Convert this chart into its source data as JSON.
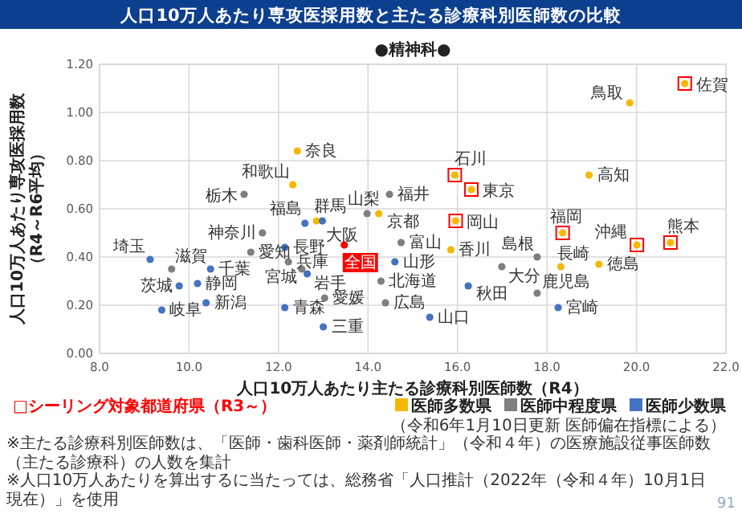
{
  "chart_data": {
    "type": "scatter",
    "title": "人口10万人あたり専攻医採用数と主たる診療科別医師数の比較",
    "subtitle": "●精神科●",
    "xlabel": "人口10万人あたり主たる診療科別医師数（R4）",
    "ylabel": "人口10万人あたり専攻医採用数（R4～R6平均）",
    "xlim": [
      8,
      22
    ],
    "ylim": [
      0,
      1.2
    ],
    "xticks": [
      {
        "value": 8,
        "label": "8.0"
      },
      {
        "value": 10,
        "label": "10.0"
      },
      {
        "value": 12,
        "label": "12.0"
      },
      {
        "value": 14,
        "label": "14.0"
      },
      {
        "value": 16,
        "label": "16.0"
      },
      {
        "value": 18,
        "label": "18.0"
      },
      {
        "value": 20,
        "label": "20.0"
      },
      {
        "value": 22,
        "label": "22.0"
      }
    ],
    "yticks": [
      {
        "value": 0,
        "label": "0.00"
      },
      {
        "value": 0.2,
        "label": "0.20"
      },
      {
        "value": 0.4,
        "label": "0.40"
      },
      {
        "value": 0.6,
        "label": "0.60"
      },
      {
        "value": 0.8,
        "label": "0.80"
      },
      {
        "value": 1.0,
        "label": "1.00"
      },
      {
        "value": 1.2,
        "label": "1.20"
      }
    ],
    "grid": true,
    "marker": "circle",
    "legend": "bottom right",
    "series": [
      {
        "name": "医師多数県",
        "color": "#f5b800",
        "x": [
          12.42,
          12.32,
          12.85,
          14.24,
          15.94,
          16.31,
          15.96,
          15.85,
          18.94,
          19.85,
          21.08,
          18.35,
          18.31,
          19.16,
          20.01,
          20.76
        ],
        "values": [
          0.84,
          0.7,
          0.55,
          0.58,
          0.74,
          0.68,
          0.55,
          0.43,
          0.74,
          1.04,
          1.12,
          0.5,
          0.36,
          0.37,
          0.45,
          0.46
        ]
      },
      {
        "name": "医師中程度県",
        "color": "#7f7f7f",
        "x": [
          11.23,
          13.98,
          14.48,
          11.64,
          9.61,
          11.38,
          12.22,
          12.52,
          13.03,
          14.74,
          14.29,
          14.39,
          16.99,
          17.78,
          17.78
        ],
        "values": [
          0.66,
          0.58,
          0.66,
          0.5,
          0.35,
          0.42,
          0.38,
          0.35,
          0.23,
          0.46,
          0.3,
          0.21,
          0.36,
          0.4,
          0.25
        ]
      },
      {
        "name": "医師少数県",
        "color": "#4472c4",
        "x": [
          12.59,
          12.98,
          12.14,
          9.13,
          10.48,
          12.64,
          9.78,
          10.19,
          10.38,
          9.39,
          12.14,
          13.0,
          14.6,
          15.38,
          16.24,
          18.25
        ],
        "values": [
          0.54,
          0.55,
          0.44,
          0.39,
          0.35,
          0.33,
          0.28,
          0.29,
          0.21,
          0.18,
          0.19,
          0.11,
          0.38,
          0.15,
          0.28,
          0.19
        ]
      },
      {
        "color": "#ff0000",
        "x": [
          13.47
        ],
        "values": [
          0.45
        ]
      },
      {
        "name": "□シーリング対象都道府県（R3～）",
        "color": "#ff0000",
        "marker": "square",
        "x": [
          15.94,
          16.31,
          15.96,
          18.35,
          20.01,
          20.76,
          21.08
        ],
        "values": [
          0.74,
          0.68,
          0.55,
          0.5,
          0.45,
          0.46,
          1.12
        ]
      }
    ],
    "annotations": [
      {
        "text": "奈良",
        "x": 12.42,
        "y": 0.84
      },
      {
        "text": "和歌山",
        "x": 12.32,
        "y": 0.7
      },
      {
        "text": "大阪",
        "x": 12.85,
        "y": 0.55
      },
      {
        "text": "京都",
        "x": 14.24,
        "y": 0.58
      },
      {
        "text": "石川",
        "x": 15.94,
        "y": 0.74
      },
      {
        "text": "東京",
        "x": 16.31,
        "y": 0.68
      },
      {
        "text": "岡山",
        "x": 15.96,
        "y": 0.55
      },
      {
        "text": "香川",
        "x": 15.85,
        "y": 0.43
      },
      {
        "text": "高知",
        "x": 18.94,
        "y": 0.74
      },
      {
        "text": "鳥取",
        "x": 19.85,
        "y": 1.04
      },
      {
        "text": "佐賀",
        "x": 21.08,
        "y": 1.12
      },
      {
        "text": "福岡",
        "x": 18.35,
        "y": 0.5
      },
      {
        "text": "長崎",
        "x": 18.31,
        "y": 0.36
      },
      {
        "text": "徳島",
        "x": 19.16,
        "y": 0.37
      },
      {
        "text": "沖縄",
        "x": 20.01,
        "y": 0.45
      },
      {
        "text": "熊本",
        "x": 20.76,
        "y": 0.46
      },
      {
        "text": "栃木",
        "x": 11.23,
        "y": 0.66
      },
      {
        "text": "山梨",
        "x": 13.98,
        "y": 0.58
      },
      {
        "text": "福井",
        "x": 14.48,
        "y": 0.66
      },
      {
        "text": "神奈川",
        "x": 11.64,
        "y": 0.5
      },
      {
        "text": "滋賀",
        "x": 9.61,
        "y": 0.35
      },
      {
        "text": "愛知",
        "x": 11.38,
        "y": 0.42
      },
      {
        "text": "兵庫",
        "x": 12.22,
        "y": 0.38
      },
      {
        "text": "宮城",
        "x": 12.52,
        "y": 0.35
      },
      {
        "text": "愛媛",
        "x": 13.03,
        "y": 0.23
      },
      {
        "text": "富山",
        "x": 14.74,
        "y": 0.46
      },
      {
        "text": "北海道",
        "x": 14.29,
        "y": 0.3
      },
      {
        "text": "広島",
        "x": 14.39,
        "y": 0.21
      },
      {
        "text": "大分",
        "x": 16.99,
        "y": 0.36
      },
      {
        "text": "島根",
        "x": 17.78,
        "y": 0.4
      },
      {
        "text": "鹿児島",
        "x": 17.78,
        "y": 0.25
      },
      {
        "text": "福島",
        "x": 12.59,
        "y": 0.54
      },
      {
        "text": "群馬",
        "x": 12.98,
        "y": 0.55
      },
      {
        "text": "長野",
        "x": 12.14,
        "y": 0.44
      },
      {
        "text": "埼玉",
        "x": 9.13,
        "y": 0.39
      },
      {
        "text": "千葉",
        "x": 10.48,
        "y": 0.35
      },
      {
        "text": "岩手",
        "x": 12.64,
        "y": 0.33
      },
      {
        "text": "茨城",
        "x": 9.78,
        "y": 0.28
      },
      {
        "text": "静岡",
        "x": 10.19,
        "y": 0.29
      },
      {
        "text": "新潟",
        "x": 10.38,
        "y": 0.21
      },
      {
        "text": "岐阜",
        "x": 9.39,
        "y": 0.18
      },
      {
        "text": "青森",
        "x": 12.14,
        "y": 0.19
      },
      {
        "text": "三重",
        "x": 13.0,
        "y": 0.11
      },
      {
        "text": "山形",
        "x": 14.6,
        "y": 0.38
      },
      {
        "text": "山口",
        "x": 15.38,
        "y": 0.15
      },
      {
        "text": "秋田",
        "x": 16.24,
        "y": 0.28
      },
      {
        "text": "宮崎",
        "x": 18.25,
        "y": 0.19
      },
      {
        "text": "全国",
        "x": 13.47,
        "y": 0.45
      },
      "（令和6年1月10日更新 医師偏在指標による）",
      "※主たる診療科別医師数は、「医師・歯科医師・薬剤師統計」（令和４年）の医療施設従事医師数（主たる診療科）の人数を集計",
      "※人口10万人あたりを算出するに当たっては、総務省「人口推計（2022年（令和４年）10月1日現在）」を使用",
      "91"
    ]
  }
}
